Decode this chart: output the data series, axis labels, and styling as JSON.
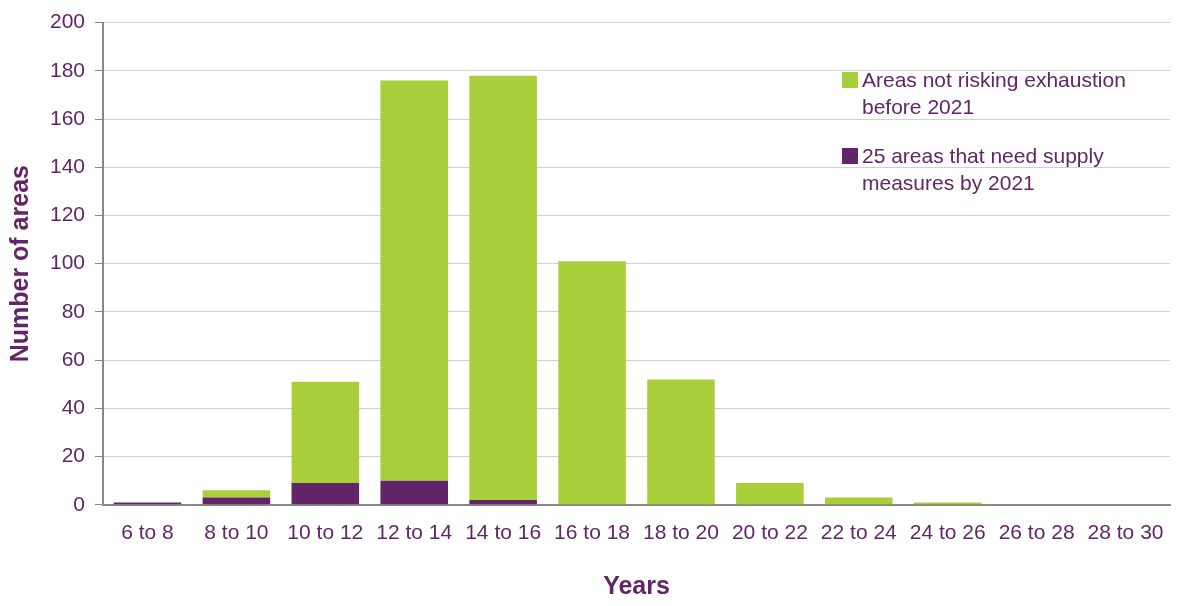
{
  "chart_data": {
    "type": "bar",
    "stacked": true,
    "xlabel": "Years",
    "ylabel": "Number of areas",
    "categories": [
      "6 to 8",
      "8 to 10",
      "10 to 12",
      "12 to 14",
      "14 to 16",
      "16 to 18",
      "18 to 20",
      "20 to 22",
      "22 to 24",
      "24 to 26",
      "26 to 28",
      "28 to 30"
    ],
    "series": [
      {
        "name": "25 areas that need supply measures by 2021",
        "color": "#622567",
        "values": [
          1,
          3,
          9,
          10,
          2,
          0,
          0,
          0,
          0,
          0,
          0,
          0
        ]
      },
      {
        "name": "Areas not risking exhaustion before 2021",
        "color": "#a9d03a",
        "values": [
          0,
          3,
          42,
          166,
          176,
          101,
          52,
          9,
          3,
          1,
          0,
          0
        ]
      }
    ],
    "ylim": [
      0,
      200
    ],
    "yticks": [
      0,
      20,
      40,
      60,
      80,
      100,
      120,
      140,
      160,
      180,
      200
    ],
    "grid": "y",
    "legend": "top right"
  }
}
